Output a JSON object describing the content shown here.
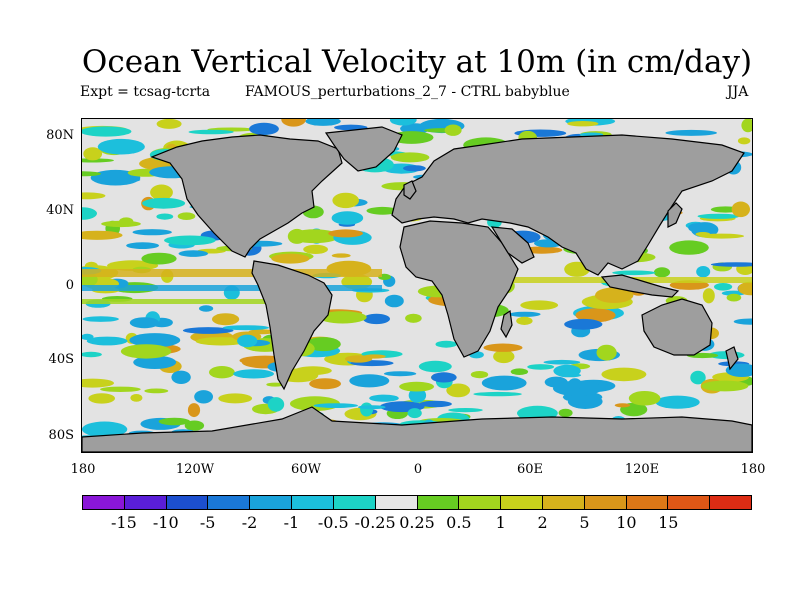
{
  "title": "Ocean Vertical Velocity at 10m (in cm/day)",
  "experiment": "Expt = tcsag-tcrta",
  "comparison": "FAMOUS_perturbations_2_7 - CTRL babyblue",
  "season": "JJA",
  "lat_ticks": [
    "80N",
    "40N",
    "0",
    "40S",
    "80S"
  ],
  "lon_ticks": [
    "180",
    "120W",
    "60W",
    "0",
    "60E",
    "120E",
    "180"
  ],
  "colorbar": {
    "colors": [
      "#8a16d8",
      "#5a1ed8",
      "#1c4fcf",
      "#1a78d7",
      "#1aa3db",
      "#1cbfdc",
      "#1dd3c6",
      "#e6e6e6",
      "#66cc22",
      "#a2d61e",
      "#c8d11c",
      "#d6b21c",
      "#d9961a",
      "#dd7717",
      "#df5716",
      "#dd2c14"
    ],
    "labels": [
      "-15",
      "-10",
      "-5",
      "-2",
      "-1",
      "-0.5",
      "-0.25",
      "0.25",
      "0.5",
      "1",
      "2",
      "5",
      "10",
      "15"
    ]
  },
  "map": {
    "land_color": "#9e9e9e",
    "ocean_color": "#e3e3e3"
  }
}
